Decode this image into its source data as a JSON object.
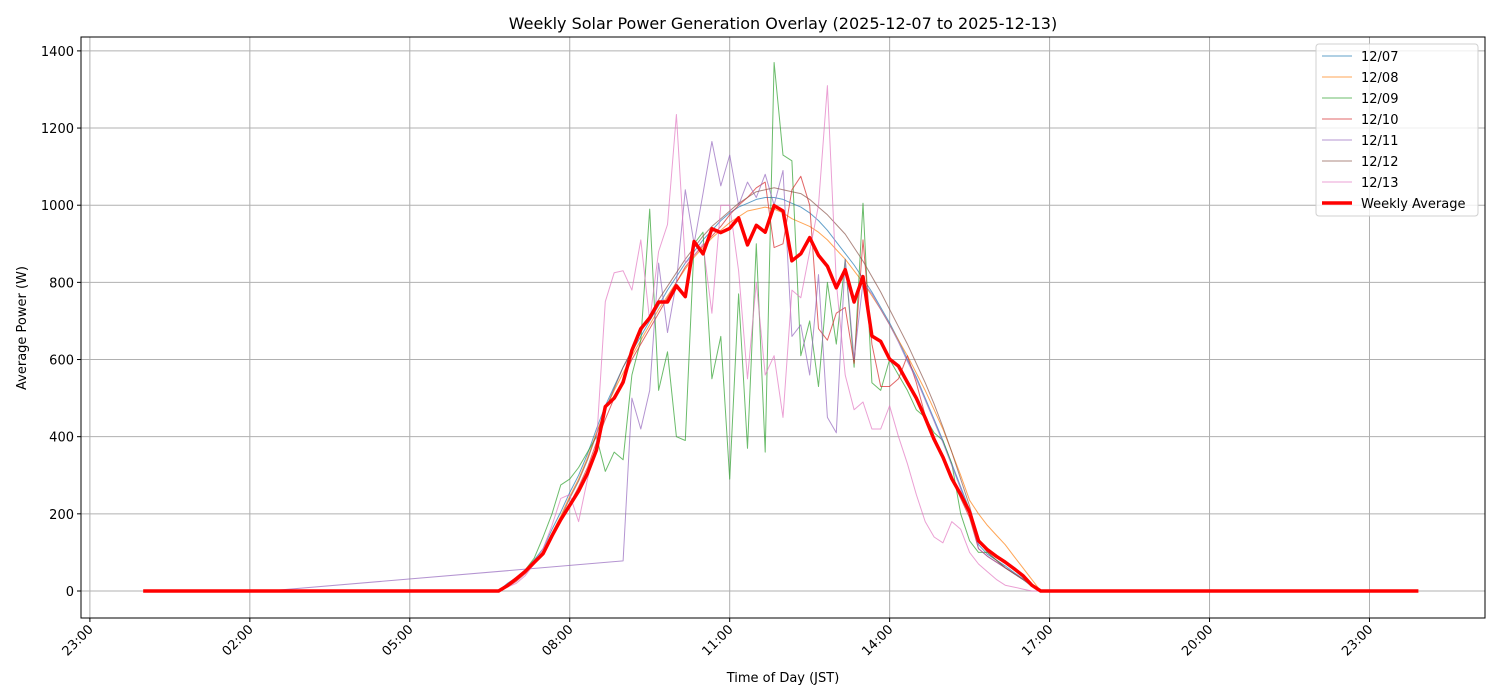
{
  "chart_data": {
    "type": "line",
    "title": "Weekly Solar Power Generation Overlay (2025-12-07 to 2025-12-13)",
    "xlabel": "Time of Day (JST)",
    "ylabel": "Average Power (W)",
    "x_ticks": [
      "23:00",
      "02:00",
      "05:00",
      "08:00",
      "11:00",
      "14:00",
      "17:00",
      "20:00",
      "23:00"
    ],
    "y_ticks": [
      0,
      200,
      400,
      600,
      800,
      1000,
      1200,
      1400
    ],
    "xlim": [
      "22:50 (previous day)",
      "01:10 (next day)"
    ],
    "ylim": [
      -70,
      1436
    ],
    "grid": true,
    "legend_position": "top-right",
    "x": [
      "00:00",
      "06:40",
      "06:50",
      "07:00",
      "07:10",
      "07:20",
      "07:30",
      "07:40",
      "07:50",
      "08:00",
      "08:10",
      "08:20",
      "08:30",
      "08:40",
      "08:50",
      "09:00",
      "09:10",
      "09:20",
      "09:30",
      "09:40",
      "09:50",
      "10:00",
      "10:10",
      "10:20",
      "10:30",
      "10:40",
      "10:50",
      "11:00",
      "11:10",
      "11:20",
      "11:30",
      "11:40",
      "11:50",
      "12:00",
      "12:10",
      "12:20",
      "12:30",
      "12:40",
      "12:50",
      "13:00",
      "13:10",
      "13:20",
      "13:30",
      "13:40",
      "13:50",
      "14:00",
      "14:10",
      "14:20",
      "14:30",
      "14:40",
      "14:50",
      "15:00",
      "15:10",
      "15:20",
      "15:30",
      "15:40",
      "15:50",
      "16:00",
      "16:10",
      "16:20",
      "16:30",
      "16:40",
      "16:50",
      "23:55"
    ],
    "series": [
      {
        "name": "12/07",
        "color": "#1f77b4",
        "values": [
          0,
          0,
          20,
          35,
          55,
          80,
          110,
          160,
          205,
          255,
          300,
          355,
          420,
          480,
          530,
          580,
          620,
          660,
          700,
          740,
          780,
          815,
          850,
          880,
          910,
          935,
          960,
          980,
          995,
          1005,
          1015,
          1020,
          1020,
          1015,
          1005,
          995,
          980,
          960,
          935,
          905,
          875,
          845,
          810,
          775,
          735,
          695,
          650,
          600,
          555,
          500,
          445,
          390,
          330,
          270,
          210,
          120,
          95,
          80,
          65,
          48,
          32,
          15,
          0,
          0
        ]
      },
      {
        "name": "12/08",
        "color": "#ff7f0e",
        "values": [
          0,
          0,
          15,
          30,
          50,
          75,
          105,
          150,
          195,
          245,
          290,
          345,
          410,
          470,
          520,
          565,
          610,
          650,
          690,
          730,
          765,
          800,
          835,
          865,
          890,
          915,
          935,
          955,
          970,
          985,
          990,
          995,
          990,
          980,
          965,
          955,
          945,
          930,
          910,
          885,
          860,
          830,
          800,
          765,
          730,
          690,
          650,
          610,
          565,
          520,
          470,
          420,
          360,
          300,
          235,
          200,
          170,
          145,
          120,
          90,
          60,
          30,
          0,
          0
        ]
      },
      {
        "name": "12/09",
        "color": "#2ca02c",
        "values": [
          0,
          0,
          18,
          35,
          55,
          85,
          140,
          200,
          275,
          290,
          320,
          360,
          400,
          310,
          360,
          340,
          560,
          650,
          990,
          520,
          620,
          400,
          390,
          900,
          930,
          550,
          660,
          290,
          770,
          370,
          900,
          360,
          1370,
          1130,
          1115,
          610,
          700,
          530,
          800,
          640,
          860,
          580,
          1005,
          540,
          520,
          600,
          560,
          520,
          470,
          450,
          410,
          390,
          330,
          200,
          130,
          100,
          100,
          80,
          60,
          45,
          30,
          12,
          0,
          0
        ]
      },
      {
        "name": "12/10",
        "color": "#d62728",
        "values": [
          0,
          0,
          10,
          25,
          45,
          70,
          95,
          140,
          180,
          225,
          270,
          320,
          385,
          445,
          500,
          550,
          600,
          640,
          680,
          720,
          760,
          800,
          840,
          870,
          895,
          920,
          945,
          975,
          1000,
          1020,
          1045,
          1060,
          890,
          900,
          1040,
          1075,
          1000,
          680,
          650,
          720,
          735,
          590,
          910,
          640,
          530,
          530,
          550,
          610,
          540,
          455,
          400,
          350,
          290,
          240,
          190,
          110,
          90,
          75,
          60,
          45,
          30,
          15,
          0,
          0
        ]
      },
      {
        "name": "12/11",
        "color": "#9467bd",
        "x": [
          "00:00",
          "02:20",
          "09:00",
          "09:10",
          "09:20",
          "09:30",
          "09:40",
          "09:50",
          "10:00",
          "10:10",
          "10:20",
          "10:30",
          "10:40",
          "10:50",
          "11:00",
          "11:10",
          "11:20",
          "11:30",
          "11:40",
          "11:50",
          "12:00",
          "12:10",
          "12:20",
          "12:30",
          "12:40",
          "12:50",
          "13:00",
          "13:10",
          "13:20",
          "13:30",
          "13:40",
          "13:50",
          "14:00",
          "14:10",
          "14:20",
          "14:30",
          "14:40",
          "14:50",
          "15:00",
          "15:10",
          "15:20",
          "15:30",
          "15:40",
          "15:50",
          "16:00",
          "16:10",
          "16:20",
          "16:30",
          "16:40",
          "16:50",
          "23:55"
        ],
        "values": [
          0,
          0,
          78,
          500,
          420,
          520,
          850,
          670,
          800,
          1040,
          900,
          1030,
          1165,
          1050,
          1130,
          1000,
          1060,
          1020,
          1080,
          1000,
          1090,
          660,
          690,
          560,
          820,
          450,
          410,
          860,
          600,
          800,
          770,
          730,
          690,
          645,
          595,
          550,
          495,
          440,
          385,
          325,
          265,
          200,
          110,
          90,
          75,
          60,
          45,
          30,
          12,
          0,
          0
        ]
      },
      {
        "name": "12/12",
        "color": "#8c564b",
        "values": [
          0,
          0,
          12,
          28,
          48,
          70,
          100,
          145,
          190,
          240,
          285,
          340,
          405,
          470,
          525,
          580,
          625,
          670,
          715,
          755,
          790,
          825,
          860,
          890,
          920,
          945,
          965,
          985,
          1005,
          1020,
          1035,
          1040,
          1045,
          1040,
          1035,
          1030,
          1015,
          995,
          975,
          950,
          925,
          890,
          855,
          815,
          775,
          730,
          685,
          640,
          590,
          540,
          485,
          425,
          360,
          290,
          220,
          130,
          100,
          80,
          60,
          45,
          30,
          15,
          0,
          0
        ]
      },
      {
        "name": "12/13",
        "color": "#e377c2",
        "values": [
          0,
          0,
          10,
          20,
          40,
          70,
          110,
          170,
          240,
          250,
          180,
          290,
          380,
          750,
          825,
          830,
          780,
          910,
          700,
          880,
          950,
          1235,
          850,
          870,
          900,
          720,
          1000,
          1000,
          830,
          550,
          800,
          560,
          610,
          450,
          780,
          760,
          880,
          1000,
          1310,
          800,
          560,
          470,
          490,
          420,
          420,
          480,
          400,
          330,
          250,
          180,
          140,
          125,
          180,
          160,
          100,
          70,
          50,
          30,
          15,
          10,
          5,
          0,
          0,
          0
        ]
      },
      {
        "name": "Weekly Average",
        "color": "#ff0000",
        "values": [
          0,
          0,
          14,
          32,
          51,
          74,
          97,
          143,
          185,
          222,
          259,
          305,
          365,
          478,
          500,
          541,
          624,
          680,
          708,
          749,
          749,
          791,
          763,
          906,
          874,
          939,
          929,
          940,
          967,
          897,
          948,
          930,
          999,
          985,
          856,
          874,
          916,
          870,
          842,
          786,
          833,
          749,
          815,
          661,
          647,
          601,
          583,
          541,
          500,
          449,
          393,
          347,
          291,
          250,
          205,
          130,
          107,
          90,
          75,
          58,
          40,
          15,
          0,
          0
        ]
      }
    ]
  }
}
